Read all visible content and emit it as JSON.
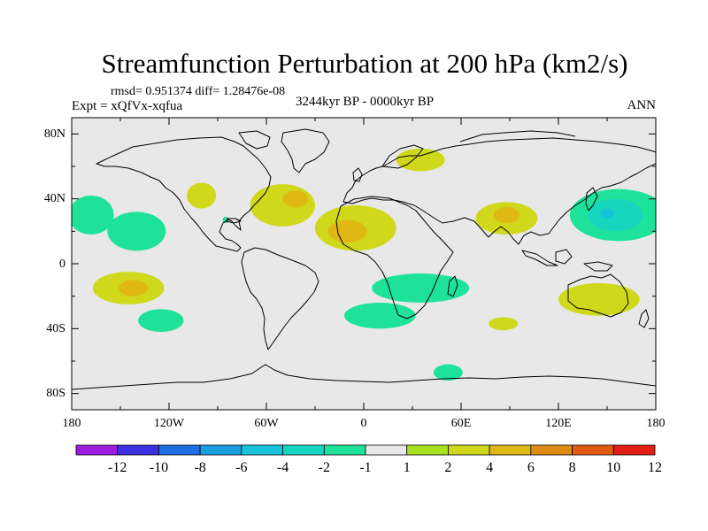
{
  "title": "Streamfunction Perturbation at 200 hPa (km2/s)",
  "stats": "rmsd= 0.951374 diff= 1.28476e-08",
  "experiment": "Expt = xQfVx-xqfua",
  "period": "3244kyr BP - 0000kyr BP",
  "season": "ANN",
  "colors": {
    "land_background": "#e8e8e8",
    "coast": "#000000"
  },
  "map_axes": {
    "lon_ticks": [
      "180",
      "120W",
      "60W",
      "0",
      "60E",
      "120E",
      "180"
    ],
    "lat_ticks": [
      "80N",
      "40N",
      "0",
      "40S",
      "80S"
    ]
  },
  "legend": {
    "labels": [
      "-12",
      "-10",
      "-8",
      "-6",
      "-4",
      "-2",
      "-1",
      "1",
      "2",
      "4",
      "6",
      "8",
      "10",
      "12"
    ],
    "colors": [
      "#9e1ce0",
      "#3b2fe0",
      "#1e6fe0",
      "#1a9ee0",
      "#17c3d8",
      "#17d6c0",
      "#1ee29a",
      "#e8e8e8",
      "#a6e01e",
      "#cfd81a",
      "#e0b814",
      "#e08c14",
      "#e05a14",
      "#e01e14"
    ]
  },
  "anomalies": [
    {
      "lon": -140,
      "lat": 20,
      "rx": 18,
      "ry": 12,
      "level": "-1"
    },
    {
      "lon": -168,
      "lat": 30,
      "rx": 14,
      "ry": 12,
      "level": "-1"
    },
    {
      "lon": -100,
      "lat": 42,
      "rx": 9,
      "ry": 8,
      "level": "2"
    },
    {
      "lon": -50,
      "lat": 36,
      "rx": 20,
      "ry": 13,
      "level": "2"
    },
    {
      "lon": -42,
      "lat": 40,
      "rx": 8,
      "ry": 5,
      "level": "4"
    },
    {
      "lon": -5,
      "lat": 22,
      "rx": 25,
      "ry": 14,
      "level": "2"
    },
    {
      "lon": -10,
      "lat": 20,
      "rx": 12,
      "ry": 7,
      "level": "4"
    },
    {
      "lon": -85,
      "lat": 27,
      "rx": 2,
      "ry": 2,
      "level": "-1"
    },
    {
      "lon": 35,
      "lat": 64,
      "rx": 15,
      "ry": 7,
      "level": "2"
    },
    {
      "lon": 88,
      "lat": 28,
      "rx": 19,
      "ry": 10,
      "level": "2"
    },
    {
      "lon": 88,
      "lat": 30,
      "rx": 8,
      "ry": 5,
      "level": "4"
    },
    {
      "lon": 157,
      "lat": 30,
      "rx": 30,
      "ry": 16,
      "level": "-1"
    },
    {
      "lon": 155,
      "lat": 30,
      "rx": 17,
      "ry": 10,
      "level": "-2"
    },
    {
      "lon": 150,
      "lat": 31,
      "rx": 4,
      "ry": 3,
      "level": "-4"
    },
    {
      "lon": -145,
      "lat": -15,
      "rx": 22,
      "ry": 10,
      "level": "2"
    },
    {
      "lon": -142,
      "lat": -15,
      "rx": 9,
      "ry": 5,
      "level": "4"
    },
    {
      "lon": -125,
      "lat": -35,
      "rx": 14,
      "ry": 7,
      "level": "-1"
    },
    {
      "lon": 35,
      "lat": -15,
      "rx": 30,
      "ry": 9,
      "level": "-1"
    },
    {
      "lon": 10,
      "lat": -32,
      "rx": 22,
      "ry": 8,
      "level": "-1"
    },
    {
      "lon": 145,
      "lat": -22,
      "rx": 25,
      "ry": 10,
      "level": "2"
    },
    {
      "lon": 86,
      "lat": -37,
      "rx": 9,
      "ry": 4,
      "level": "2"
    },
    {
      "lon": 52,
      "lat": -67,
      "rx": 9,
      "ry": 5,
      "level": "-1"
    }
  ]
}
